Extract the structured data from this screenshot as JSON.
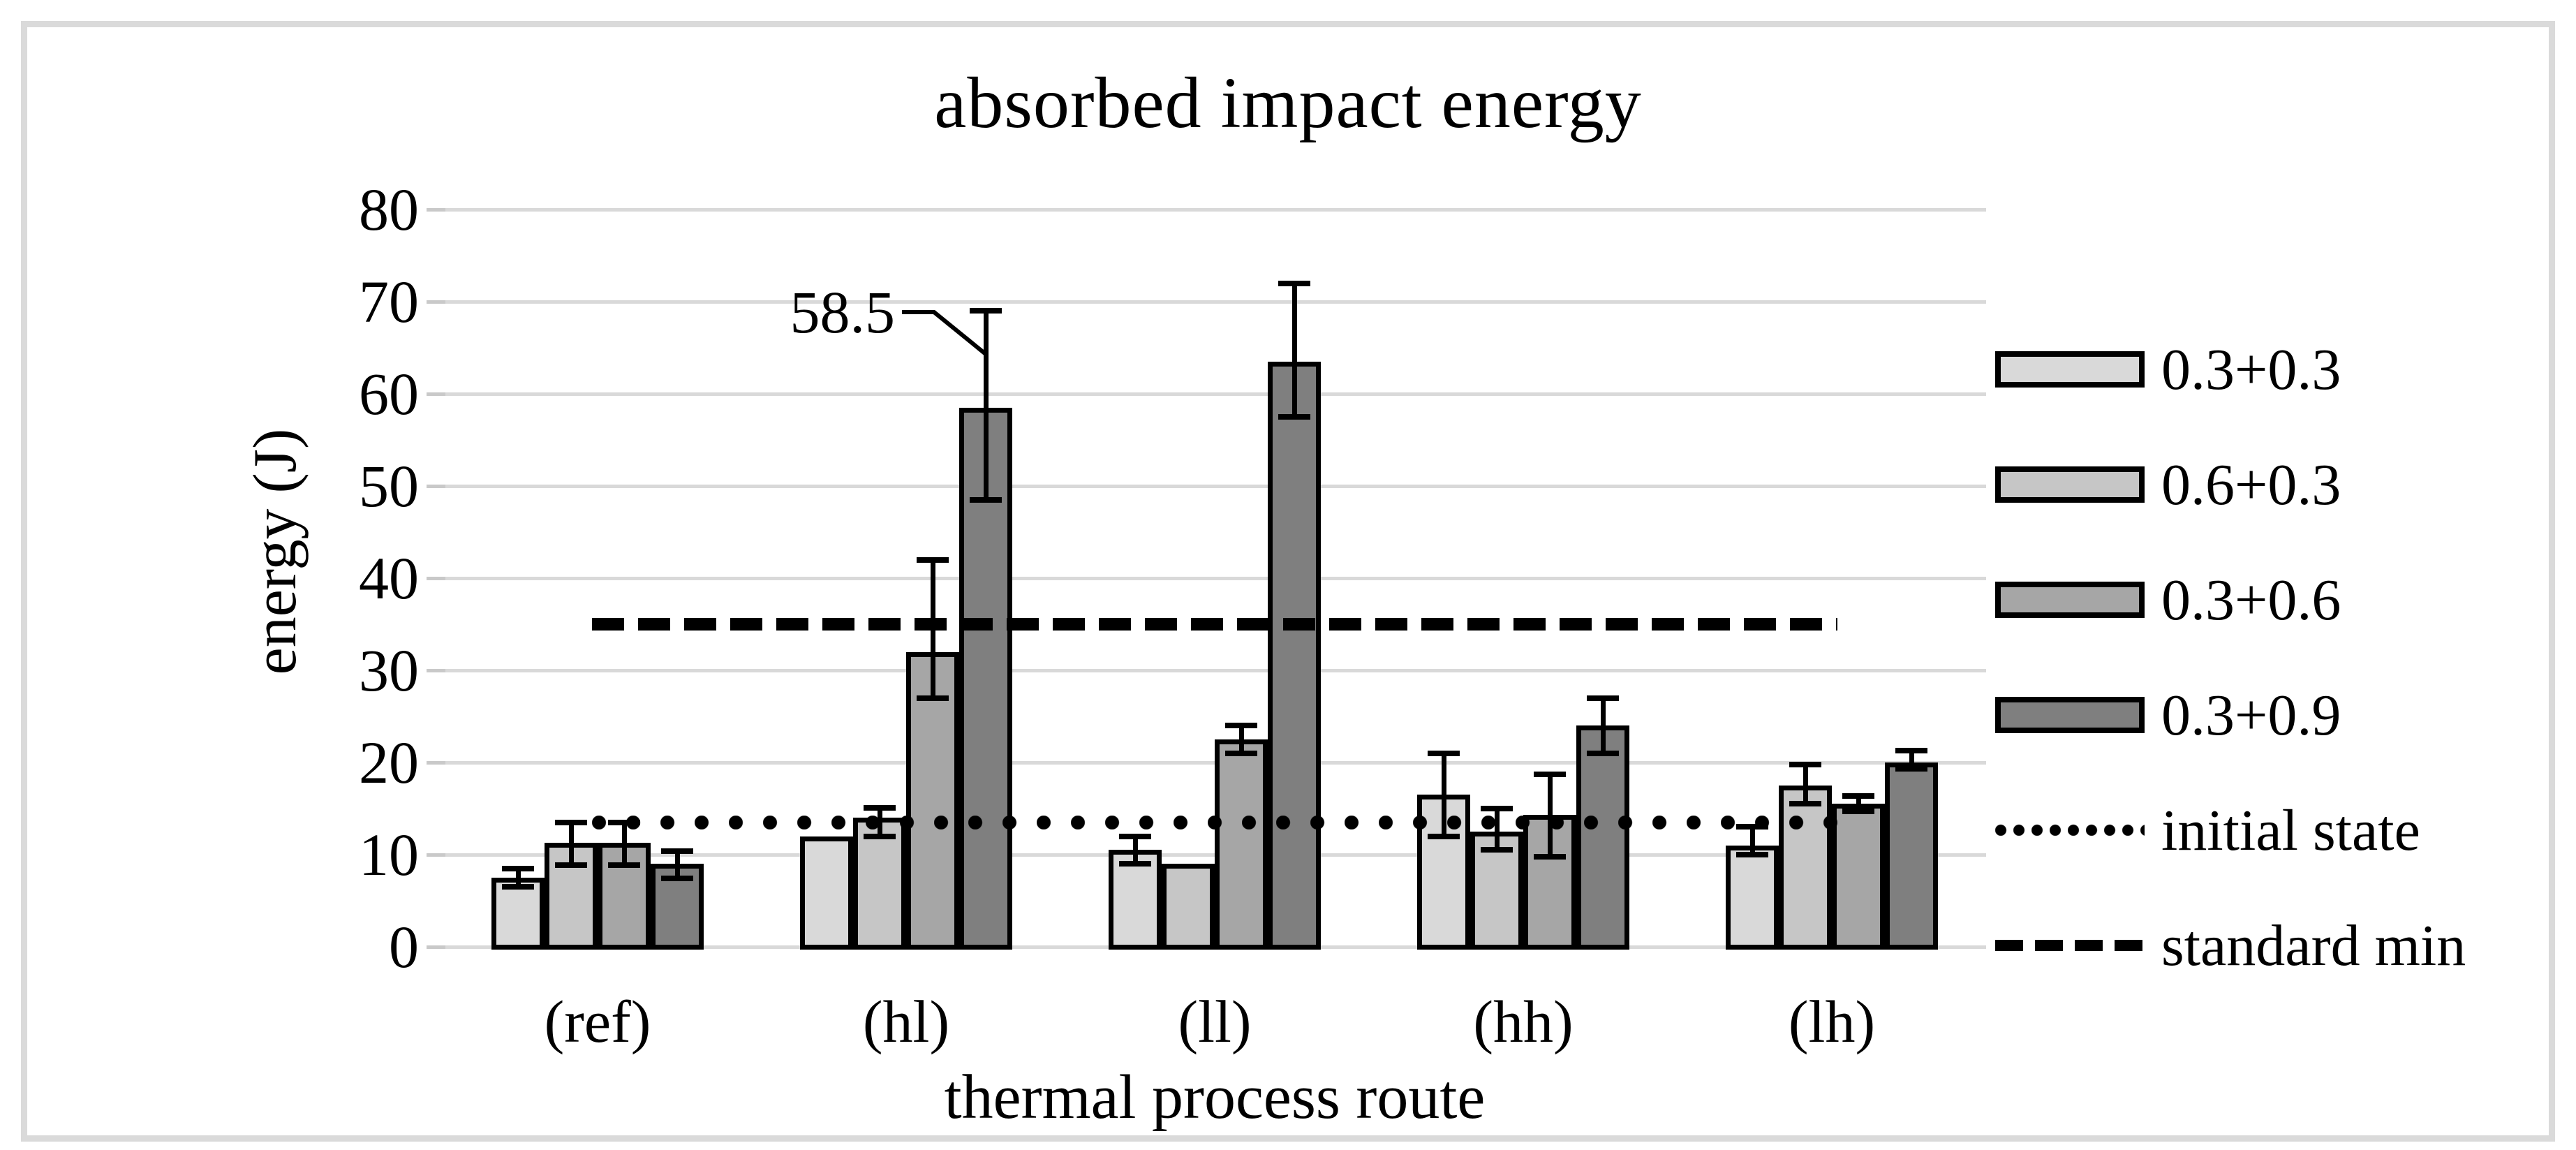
{
  "chart_data": {
    "type": "bar",
    "title": "absorbed impact energy",
    "xlabel": "thermal process route",
    "ylabel": "energy (J)",
    "ylim": [
      0,
      80
    ],
    "yticks": [
      0,
      10,
      20,
      30,
      40,
      50,
      60,
      70,
      80
    ],
    "grid": true,
    "legend_position": "right",
    "categories": [
      "(ref)",
      "(hl)",
      "(ll)",
      "(hh)",
      "(lh)"
    ],
    "series": [
      {
        "name": "0.3+0.3",
        "color": "#d9d9d9",
        "values": [
          7.5,
          12,
          10.5,
          16.5,
          11
        ],
        "whisker_top": [
          8.5,
          null,
          12,
          21,
          13
        ],
        "whisker_bottom": [
          6.5,
          null,
          9,
          12,
          10
        ]
      },
      {
        "name": "0.6+0.3",
        "color": "#c6c6c6",
        "values": [
          11.3,
          14,
          9,
          12.5,
          17.5
        ],
        "whisker_top": [
          13.5,
          15.1,
          null,
          15,
          19.8
        ],
        "whisker_bottom": [
          8.9,
          12,
          null,
          10.5,
          15.5
        ]
      },
      {
        "name": "0.3+0.6",
        "color": "#a6a6a6",
        "values": [
          11.3,
          32,
          22.5,
          14.3,
          15.5
        ],
        "whisker_top": [
          13.5,
          42,
          24,
          18.7,
          16.4
        ],
        "whisker_bottom": [
          8.9,
          27,
          21,
          9.8,
          14.7
        ]
      },
      {
        "name": "0.3+0.9",
        "color": "#7f7f7f",
        "values": [
          9,
          58.5,
          63.5,
          24,
          20
        ],
        "whisker_top": [
          10.4,
          69,
          72,
          27,
          21.3
        ],
        "whisker_bottom": [
          7.4,
          48.5,
          57.5,
          21,
          19.3
        ]
      }
    ],
    "reference_lines": [
      {
        "label": "initial state",
        "style": "dotted",
        "value": 13.5
      },
      {
        "label": "standard min",
        "style": "dashed",
        "value": 35
      }
    ],
    "annotation": {
      "text": "58.5",
      "target_category": "(hl)",
      "target_series": "0.3+0.9",
      "target_value": 58.5
    }
  }
}
